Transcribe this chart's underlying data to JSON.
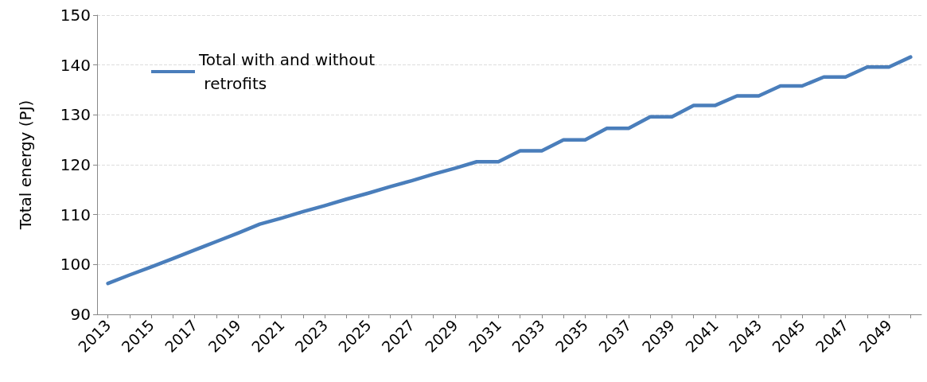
{
  "chart_data": {
    "type": "line",
    "ylabel": "Total energy (PJ)",
    "categories": [
      "2013",
      null,
      "2015",
      null,
      "2017",
      null,
      "2019",
      null,
      "2021",
      null,
      "2023",
      null,
      "2025",
      null,
      "2027",
      null,
      "2029",
      null,
      "2031",
      null,
      "2033",
      null,
      "2035",
      null,
      "2037",
      null,
      "2039",
      null,
      "2041",
      null,
      "2043",
      null,
      "2045",
      null,
      "2047",
      null,
      "2049",
      null
    ],
    "series": [
      {
        "name": "Total with and without retrofits",
        "color": "#4a7ebb",
        "values": [
          96.2,
          97.9,
          99.5,
          101.2,
          102.9,
          104.6,
          106.3,
          108.1,
          109.3,
          110.6,
          111.8,
          113.1,
          114.3,
          115.6,
          116.8,
          118.1,
          119.3,
          120.6,
          120.6,
          122.8,
          122.8,
          125.0,
          125.0,
          127.3,
          127.3,
          129.6,
          129.6,
          131.9,
          131.9,
          133.8,
          133.8,
          135.8,
          135.8,
          137.6,
          137.6,
          139.6,
          139.6,
          141.6
        ]
      }
    ],
    "ylim": [
      90,
      150
    ],
    "yticks": [
      90,
      100,
      110,
      120,
      130,
      140,
      150
    ],
    "grid": "y",
    "legend": "top left",
    "marker": "none",
    "line_style": "solid"
  }
}
